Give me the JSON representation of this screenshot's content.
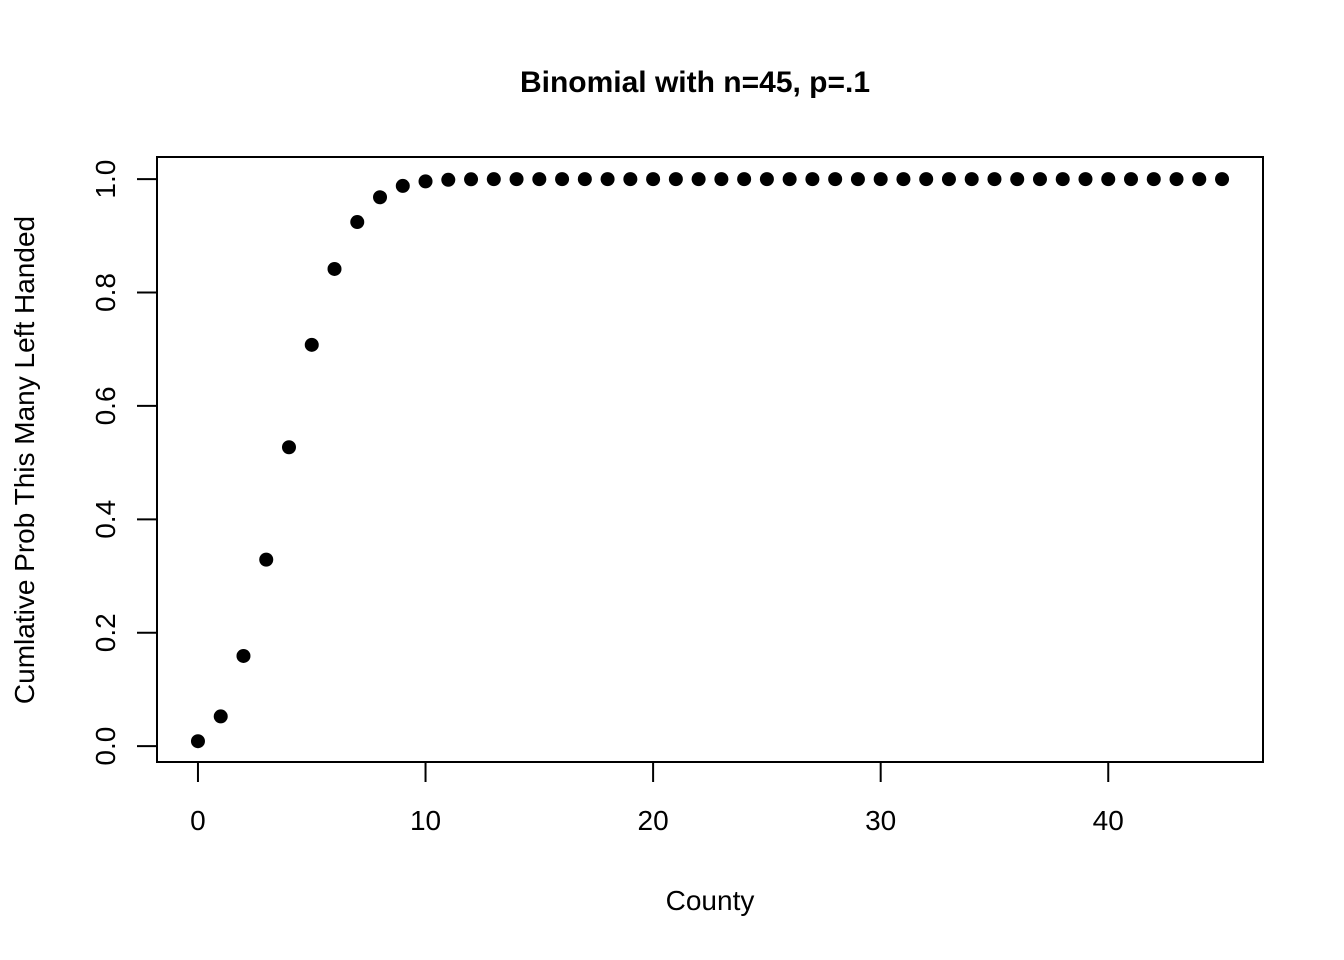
{
  "chart_data": {
    "type": "scatter",
    "title": "Binomial with n=45, p=.1",
    "xlabel": "County",
    "ylabel": "Cumlative Prob This Many Left Handed",
    "x": [
      0,
      1,
      2,
      3,
      4,
      5,
      6,
      7,
      8,
      9,
      10,
      11,
      12,
      13,
      14,
      15,
      16,
      17,
      18,
      19,
      20,
      21,
      22,
      23,
      24,
      25,
      26,
      27,
      28,
      29,
      30,
      31,
      32,
      33,
      34,
      35,
      36,
      37,
      38,
      39,
      40,
      41,
      42,
      43,
      44,
      45
    ],
    "y": [
      0.0087,
      0.0524,
      0.159,
      0.3289,
      0.5271,
      0.7077,
      0.8415,
      0.9243,
      0.968,
      0.988,
      0.996,
      0.9988,
      0.9997,
      0.9999,
      1.0,
      1.0,
      1.0,
      1.0,
      1.0,
      1.0,
      1.0,
      1.0,
      1.0,
      1.0,
      1.0,
      1.0,
      1.0,
      1.0,
      1.0,
      1.0,
      1.0,
      1.0,
      1.0,
      1.0,
      1.0,
      1.0,
      1.0,
      1.0,
      1.0,
      1.0,
      1.0,
      1.0,
      1.0,
      1.0,
      1.0,
      1.0
    ],
    "x_ticks": [
      0,
      10,
      20,
      30,
      40
    ],
    "y_ticks": [
      0.0,
      0.2,
      0.4,
      0.6,
      0.8,
      1.0
    ],
    "xlim": [
      -1.8,
      46.8
    ],
    "ylim": [
      -0.028,
      1.039
    ],
    "grid": false,
    "legend_position": "none",
    "point_shape": "filled-circle",
    "point_color": "#000000",
    "axis_color": "#000000",
    "background_color": "#FFFFFF"
  }
}
